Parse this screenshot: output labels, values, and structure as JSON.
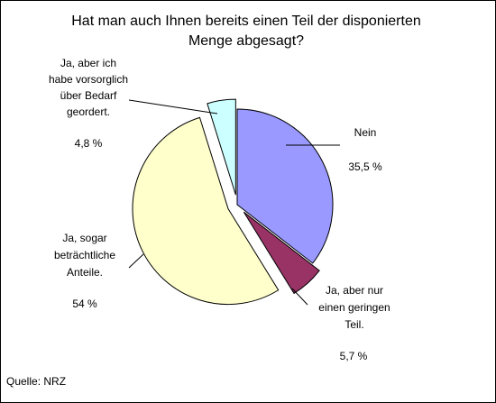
{
  "chart_data": {
    "type": "pie",
    "title_lines": [
      "Hat man auch Ihnen bereits einen Teil der disponierten",
      "Menge abgesagt?"
    ],
    "slices": [
      {
        "label_lines": [
          "Nein"
        ],
        "value_label": "35,5 %",
        "value": 35.5,
        "color": "#9999ff",
        "exploded": false
      },
      {
        "label_lines": [
          "Ja, aber nur",
          "einen geringen",
          "Teil."
        ],
        "value_label": "5,7 %",
        "value": 5.7,
        "color": "#993366",
        "exploded": true
      },
      {
        "label_lines": [
          "Ja, sogar",
          "beträchtliche",
          "Anteile."
        ],
        "value_label": "54 %",
        "value": 54,
        "color": "#ffffcc",
        "exploded": true
      },
      {
        "label_lines": [
          "Ja, aber ich",
          "habe vorsorglich",
          "über Bedarf",
          "geordert."
        ],
        "value_label": "4,8 %",
        "value": 4.8,
        "color": "#ccffff",
        "exploded": true
      }
    ],
    "source": "Quelle: NRZ"
  }
}
